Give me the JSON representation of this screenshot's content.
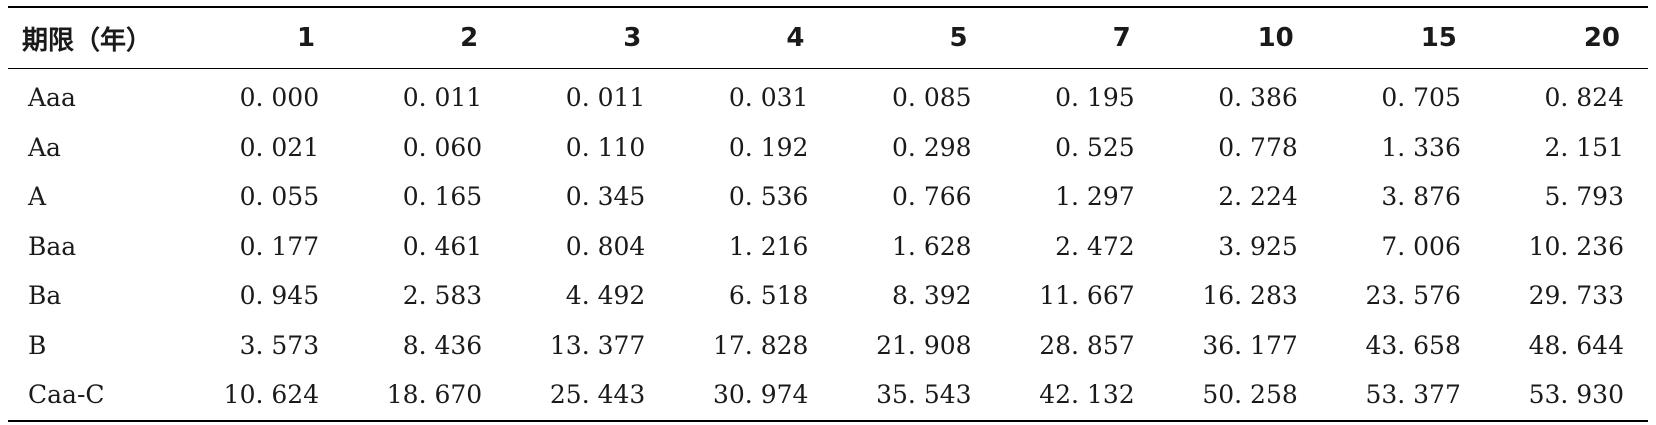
{
  "table": {
    "header": {
      "first": "期限（年）",
      "terms": [
        "1",
        "2",
        "3",
        "4",
        "5",
        "7",
        "10",
        "15",
        "20"
      ]
    },
    "rows": [
      {
        "rating": "Aaa",
        "values": [
          "0. 000",
          "0. 011",
          "0. 011",
          "0. 031",
          "0. 085",
          "0. 195",
          "0. 386",
          "0. 705",
          "0. 824"
        ]
      },
      {
        "rating": "Aa",
        "values": [
          "0. 021",
          "0. 060",
          "0. 110",
          "0. 192",
          "0. 298",
          "0. 525",
          "0. 778",
          "1. 336",
          "2. 151"
        ]
      },
      {
        "rating": "A",
        "values": [
          "0. 055",
          "0. 165",
          "0. 345",
          "0. 536",
          "0. 766",
          "1. 297",
          "2. 224",
          "3. 876",
          "5. 793"
        ]
      },
      {
        "rating": "Baa",
        "values": [
          "0. 177",
          "0. 461",
          "0. 804",
          "1. 216",
          "1. 628",
          "2. 472",
          "3. 925",
          "7. 006",
          "10. 236"
        ]
      },
      {
        "rating": "Ba",
        "values": [
          "0. 945",
          "2. 583",
          "4. 492",
          "6. 518",
          "8. 392",
          "11. 667",
          "16. 283",
          "23. 576",
          "29. 733"
        ]
      },
      {
        "rating": "B",
        "values": [
          "3. 573",
          "8. 436",
          "13. 377",
          "17. 828",
          "21. 908",
          "28. 857",
          "36. 177",
          "43. 658",
          "48. 644"
        ]
      },
      {
        "rating": "Caa-C",
        "values": [
          "10. 624",
          "18. 670",
          "25. 443",
          "30. 974",
          "35. 543",
          "42. 132",
          "50. 258",
          "53. 377",
          "53. 930"
        ]
      }
    ]
  }
}
